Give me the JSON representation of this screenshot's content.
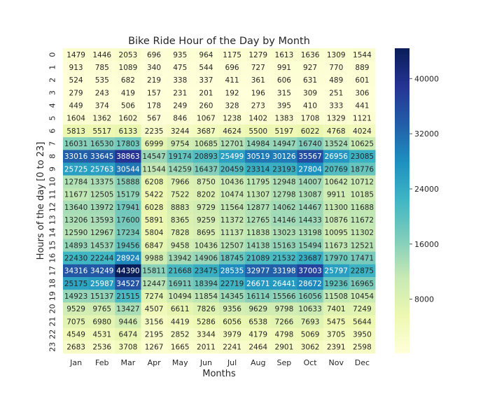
{
  "chart_data": {
    "type": "heatmap",
    "title": "Bike Ride Hour of the Day by Month",
    "xlabel": "Months",
    "ylabel": "Hours of the day [0 to 23]",
    "x_categories": [
      "Jan",
      "Feb",
      "Mar",
      "Apr",
      "May",
      "Jun",
      "Jul",
      "Aug",
      "Sep",
      "Oct",
      "Nov",
      "Dec"
    ],
    "y_categories": [
      "0",
      "1",
      "2",
      "3",
      "4",
      "5",
      "6",
      "7",
      "8",
      "9",
      "10",
      "11",
      "12",
      "13",
      "14",
      "15",
      "16",
      "17",
      "18",
      "19",
      "20",
      "21",
      "22",
      "23"
    ],
    "values": [
      [
        1479,
        1446,
        2053,
        696,
        935,
        964,
        1175,
        1279,
        1613,
        1636,
        1309,
        1544
      ],
      [
        913,
        785,
        1089,
        340,
        475,
        544,
        696,
        727,
        991,
        927,
        770,
        889
      ],
      [
        524,
        535,
        682,
        219,
        338,
        337,
        411,
        361,
        606,
        631,
        489,
        601
      ],
      [
        279,
        243,
        419,
        157,
        231,
        201,
        192,
        196,
        315,
        309,
        251,
        306
      ],
      [
        449,
        374,
        506,
        178,
        249,
        260,
        328,
        273,
        395,
        410,
        333,
        441
      ],
      [
        1604,
        1362,
        1602,
        567,
        846,
        1067,
        1238,
        1402,
        1383,
        1708,
        1329,
        1121
      ],
      [
        5813,
        5517,
        6133,
        2235,
        3244,
        3687,
        4624,
        5500,
        5197,
        6022,
        4768,
        4024
      ],
      [
        16031,
        16530,
        17803,
        6999,
        9754,
        10685,
        12701,
        14984,
        14947,
        16740,
        13524,
        10625
      ],
      [
        33016,
        33645,
        38863,
        14547,
        19174,
        20893,
        25499,
        30519,
        30126,
        35567,
        26956,
        23085
      ],
      [
        25725,
        25763,
        30544,
        11544,
        14259,
        16437,
        20459,
        23314,
        23193,
        27804,
        20769,
        18776
      ],
      [
        12784,
        13375,
        15888,
        6208,
        7966,
        8750,
        10436,
        11795,
        12948,
        14007,
        10642,
        10712
      ],
      [
        11677,
        12505,
        15179,
        5422,
        7522,
        8202,
        10474,
        11307,
        12798,
        13087,
        9911,
        10185
      ],
      [
        13640,
        13972,
        17941,
        6028,
        8883,
        9729,
        11564,
        12877,
        14062,
        14467,
        11300,
        11688
      ],
      [
        13206,
        13593,
        17600,
        5891,
        8365,
        9259,
        11372,
        12765,
        14146,
        14433,
        10876,
        11672
      ],
      [
        12590,
        12967,
        17234,
        5804,
        7828,
        8695,
        11137,
        11838,
        13023,
        13198,
        10095,
        11302
      ],
      [
        14893,
        14537,
        19456,
        6847,
        9458,
        10436,
        12507,
        14138,
        15163,
        15494,
        11673,
        12521
      ],
      [
        22430,
        22244,
        28924,
        9988,
        13942,
        14906,
        18745,
        21089,
        21532,
        23687,
        17970,
        17471
      ],
      [
        34316,
        34249,
        44390,
        15811,
        21668,
        23475,
        28535,
        32977,
        33198,
        37003,
        25797,
        22875
      ],
      [
        25175,
        25987,
        34527,
        12447,
        16911,
        18394,
        22719,
        26671,
        26441,
        28672,
        19236,
        16965
      ],
      [
        14923,
        15137,
        21515,
        7274,
        10494,
        11854,
        14345,
        16114,
        15566,
        16056,
        11508,
        10454
      ],
      [
        9529,
        9765,
        13427,
        4507,
        6611,
        7826,
        9356,
        9629,
        9798,
        10633,
        7401,
        7249
      ],
      [
        7075,
        6980,
        9446,
        3156,
        4419,
        5286,
        6056,
        6538,
        7266,
        7693,
        5475,
        5644
      ],
      [
        4549,
        4531,
        6474,
        2195,
        2852,
        3344,
        3979,
        4179,
        4798,
        5069,
        3705,
        3950
      ],
      [
        2683,
        2536,
        3708,
        1267,
        1665,
        2011,
        2241,
        2464,
        2901,
        3062,
        2391,
        2598
      ]
    ],
    "colorscale": "YlGnBu",
    "vmin": 157,
    "vmax": 44390,
    "colorbar_ticks": [
      8000,
      16000,
      24000,
      32000,
      40000
    ],
    "colorbar_tick_labels": [
      "8000",
      "16000",
      "24000",
      "32000",
      "40000"
    ],
    "annotations": "cell values shown"
  }
}
